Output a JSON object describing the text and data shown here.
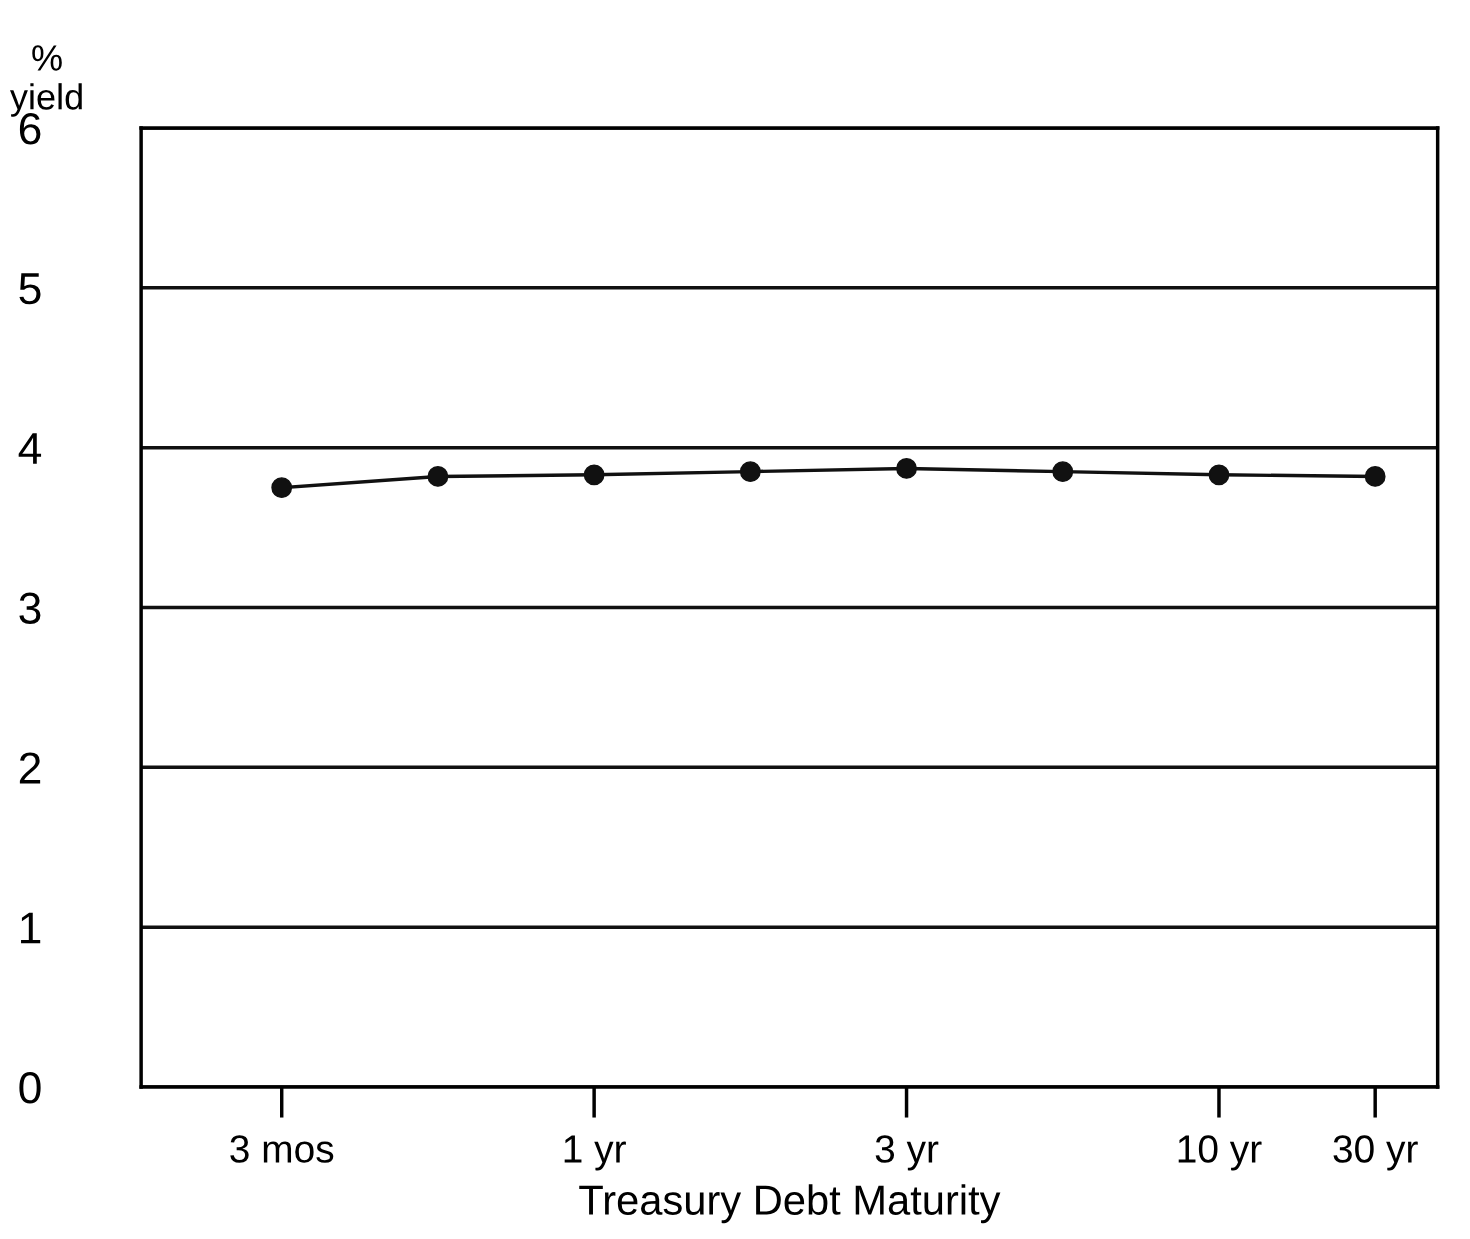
{
  "chart_data": {
    "type": "line",
    "xlabel": "Treasury Debt Maturity",
    "ylabel": "% yield",
    "categories": [
      "3 mos",
      null,
      "1 yr",
      null,
      "3 yr",
      null,
      "10 yr",
      "30 yr"
    ],
    "series": [
      {
        "color": "#111111",
        "values": [
          3.75,
          3.82,
          3.83,
          3.85,
          3.87,
          3.85,
          3.83,
          3.82
        ]
      }
    ],
    "ylim": [
      0,
      6
    ],
    "yticks": [
      0,
      1,
      2,
      3,
      4,
      5,
      6
    ],
    "grid": "y",
    "marker": "circle",
    "line_style": "solid",
    "legend": false
  }
}
